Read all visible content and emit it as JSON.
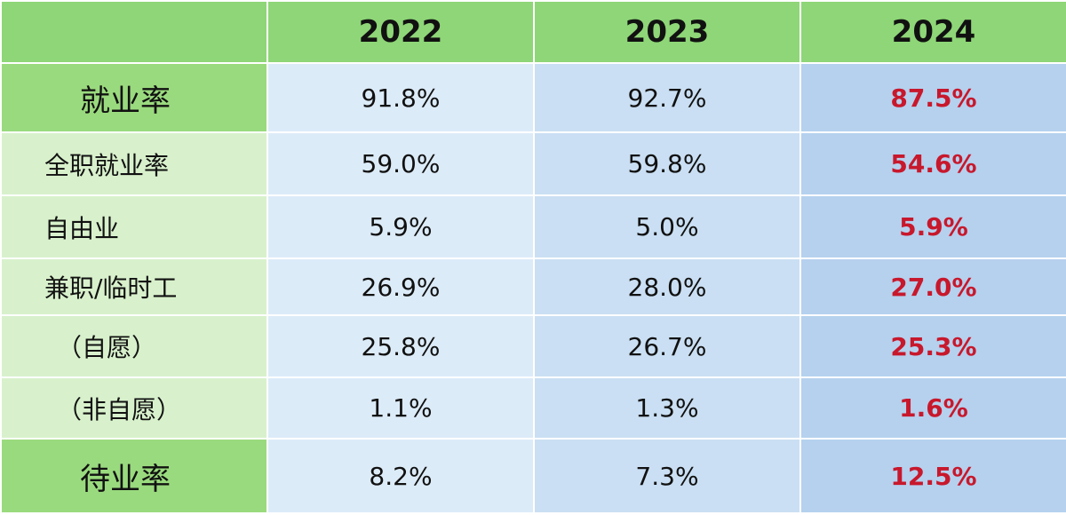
{
  "chart_data": {
    "type": "table",
    "columns": [
      "2022",
      "2023",
      "2024"
    ],
    "rows": [
      {
        "label": "就业率",
        "values": [
          "91.8%",
          "92.7%",
          "87.5%"
        ]
      },
      {
        "label": "全职就业率",
        "values": [
          "59.0%",
          "59.8%",
          "54.6%"
        ]
      },
      {
        "label": "自由业",
        "values": [
          "5.9%",
          "5.0%",
          "5.9%"
        ]
      },
      {
        "label": "兼职/临时工",
        "values": [
          "26.9%",
          "28.0%",
          "27.0%"
        ]
      },
      {
        "label": "（自愿）",
        "values": [
          "25.8%",
          "26.7%",
          "25.3%"
        ]
      },
      {
        "label": "（非自愿）",
        "values": [
          "1.1%",
          "1.3%",
          "1.6%"
        ]
      },
      {
        "label": "待业率",
        "values": [
          "8.2%",
          "7.3%",
          "12.5%"
        ]
      }
    ],
    "colors": {
      "header_bg": "#8ed677",
      "major_label_bg": "#9ada7e",
      "minor_label_bg": "#d8f1cc",
      "col_2022_bg": "#dcebf8",
      "col_2023_bg": "#cadff3",
      "col_2024_bg": "#b5d1ee",
      "highlight_text": "#c8182c"
    }
  }
}
